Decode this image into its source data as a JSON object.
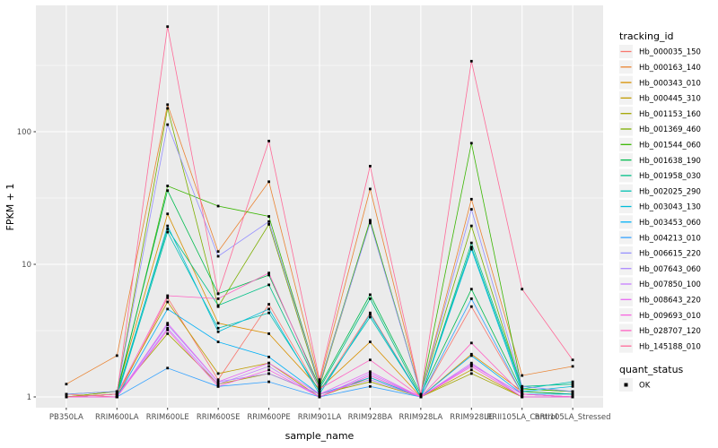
{
  "ui": {
    "panel_bg": "#EBEBEB",
    "grid_color": "#FFFFFF",
    "tick_color": "#333333",
    "tick_text_color": "#4D4D4D",
    "legend_key_bg": "#F2F2F2",
    "marker_color": "#000000"
  },
  "chart_data": {
    "type": "line",
    "title": "",
    "xlabel": "sample_name",
    "ylabel": "FPKM + 1",
    "y_scale": "log10",
    "y_ticks": [
      1,
      10,
      100
    ],
    "y_minor_ticks": [
      3.162,
      31.62,
      316.2
    ],
    "ylim": [
      0.83,
      900
    ],
    "grid": "on",
    "legend_position": "right",
    "legend_title": "tracking_id",
    "marker_shape": "square",
    "categories": [
      "PB350LA",
      "RRIM600LA",
      "RRIM600LE",
      "RRIM600SE",
      "RRIM600PE",
      "RRIM901LA",
      "RRIM928BA",
      "RRIM928LA",
      "RRIM928LE",
      "RRII105LA_Control",
      "RRII105LA_Stressed"
    ],
    "series": [
      {
        "name": "Hb_000035_150",
        "color": "#F8766D",
        "values": [
          1.05,
          1.0,
          5.6,
          1.35,
          5.0,
          1.1,
          4.3,
          1.0,
          4.8,
          1.05,
          1.0
        ]
      },
      {
        "name": "Hb_000163_140",
        "color": "#EA8331",
        "values": [
          1.25,
          2.05,
          160,
          12.5,
          42,
          1.3,
          37,
          1.05,
          31,
          1.45,
          1.7
        ]
      },
      {
        "name": "Hb_000343_010",
        "color": "#D89000",
        "values": [
          1.0,
          1.1,
          24,
          3.6,
          3.0,
          1.15,
          2.6,
          1.0,
          2.1,
          1.1,
          1.05
        ]
      },
      {
        "name": "Hb_000445_310",
        "color": "#C09B00",
        "values": [
          1.0,
          1.05,
          5.2,
          1.5,
          1.8,
          1.0,
          1.4,
          1.0,
          1.6,
          1.0,
          1.0
        ]
      },
      {
        "name": "Hb_001153_160",
        "color": "#A3A500",
        "values": [
          1.0,
          1.05,
          3.0,
          1.25,
          1.5,
          1.05,
          1.3,
          1.0,
          1.5,
          1.0,
          1.0
        ]
      },
      {
        "name": "Hb_001369_460",
        "color": "#7CAE00",
        "values": [
          1.0,
          1.1,
          150,
          4.8,
          20,
          1.2,
          21,
          1.05,
          19.5,
          1.15,
          1.1
        ]
      },
      {
        "name": "Hb_001544_060",
        "color": "#39B600",
        "values": [
          1.0,
          1.05,
          39,
          27.5,
          23,
          1.25,
          21.5,
          1.05,
          82,
          1.15,
          1.1
        ]
      },
      {
        "name": "Hb_001638_190",
        "color": "#00BB4E",
        "values": [
          1.05,
          1.1,
          36,
          6.0,
          8.3,
          1.2,
          5.9,
          1.05,
          6.5,
          1.1,
          1.05
        ]
      },
      {
        "name": "Hb_001958_030",
        "color": "#00C087",
        "values": [
          1.0,
          1.05,
          18.5,
          4.9,
          7.0,
          1.15,
          5.5,
          1.0,
          14.5,
          1.2,
          1.25
        ]
      },
      {
        "name": "Hb_002025_290",
        "color": "#00C0B2",
        "values": [
          1.0,
          1.0,
          17.5,
          3.3,
          4.3,
          1.1,
          4.0,
          1.0,
          13.5,
          1.15,
          1.3
        ]
      },
      {
        "name": "Hb_003043_130",
        "color": "#00BCD8",
        "values": [
          1.0,
          1.0,
          19.5,
          3.1,
          4.6,
          1.05,
          4.2,
          1.0,
          13.0,
          1.1,
          1.2
        ]
      },
      {
        "name": "Hb_003453_060",
        "color": "#00B0F6",
        "values": [
          1.0,
          1.0,
          4.6,
          2.6,
          2.0,
          1.05,
          1.4,
          1.0,
          2.05,
          1.05,
          1.05
        ]
      },
      {
        "name": "Hb_004213_010",
        "color": "#35A2FF",
        "values": [
          1.0,
          1.0,
          1.65,
          1.2,
          1.3,
          1.0,
          1.2,
          1.0,
          5.5,
          1.05,
          1.0
        ]
      },
      {
        "name": "Hb_006615_220",
        "color": "#9590FF",
        "values": [
          1.05,
          1.1,
          113,
          11.5,
          21,
          1.25,
          20.5,
          1.05,
          26,
          1.2,
          1.1
        ]
      },
      {
        "name": "Hb_007643_060",
        "color": "#AC88FF",
        "values": [
          1.0,
          1.0,
          3.5,
          1.3,
          1.5,
          1.05,
          1.35,
          1.0,
          1.75,
          1.05,
          1.0
        ]
      },
      {
        "name": "Hb_007850_100",
        "color": "#C77CFF",
        "values": [
          1.0,
          1.0,
          3.3,
          1.25,
          1.7,
          1.0,
          1.5,
          1.0,
          1.8,
          1.0,
          1.0
        ]
      },
      {
        "name": "Hb_008643_220",
        "color": "#E76BF3",
        "values": [
          1.0,
          1.0,
          3.6,
          1.3,
          1.8,
          1.05,
          1.55,
          1.0,
          1.75,
          1.05,
          1.0
        ]
      },
      {
        "name": "Hb_009693_010",
        "color": "#F763E0",
        "values": [
          1.0,
          1.0,
          3.2,
          1.2,
          1.6,
          1.0,
          1.45,
          1.0,
          1.7,
          1.0,
          1.0
        ]
      },
      {
        "name": "Hb_028707_120",
        "color": "#FF61C3",
        "values": [
          1.0,
          1.05,
          5.8,
          5.5,
          8.6,
          1.15,
          1.9,
          1.0,
          2.55,
          1.05,
          1.0
        ]
      },
      {
        "name": "Hb_145188_010",
        "color": "#FF6A98",
        "values": [
          1.0,
          1.05,
          620,
          6.0,
          85,
          1.35,
          55,
          1.05,
          340,
          6.5,
          1.9
        ]
      }
    ],
    "legend2": {
      "title": "quant_status",
      "items": [
        {
          "label": "OK",
          "shape": "square",
          "color": "#000000"
        }
      ]
    }
  }
}
